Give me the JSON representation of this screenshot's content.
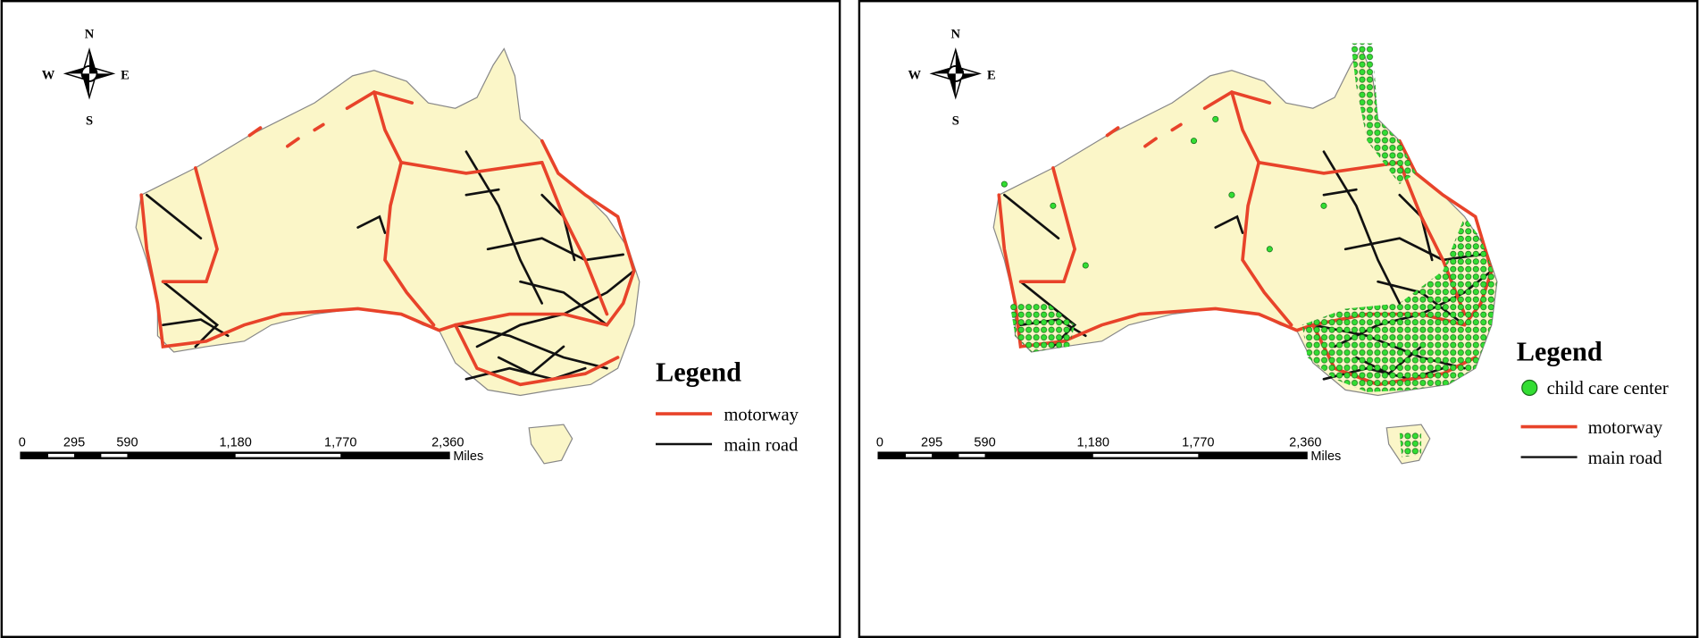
{
  "panels": [
    {
      "compass": {
        "n": "N",
        "s": "S",
        "e": "E",
        "w": "W"
      },
      "legend": {
        "title": "Legend",
        "items": [
          "motorway",
          "main road"
        ]
      },
      "scale_bar": {
        "labels": [
          "0",
          "295",
          "590",
          "1,180",
          "1,770",
          "2,360"
        ],
        "unit": "Miles"
      }
    },
    {
      "compass": {
        "n": "N",
        "s": "S",
        "e": "E",
        "w": "W"
      },
      "legend": {
        "title": "Legend",
        "items": [
          "child care center",
          "motorway",
          "main road"
        ]
      },
      "scale_bar": {
        "labels": [
          "0",
          "295",
          "590",
          "1,180",
          "1,770",
          "2,360"
        ],
        "unit": "Miles"
      }
    }
  ]
}
